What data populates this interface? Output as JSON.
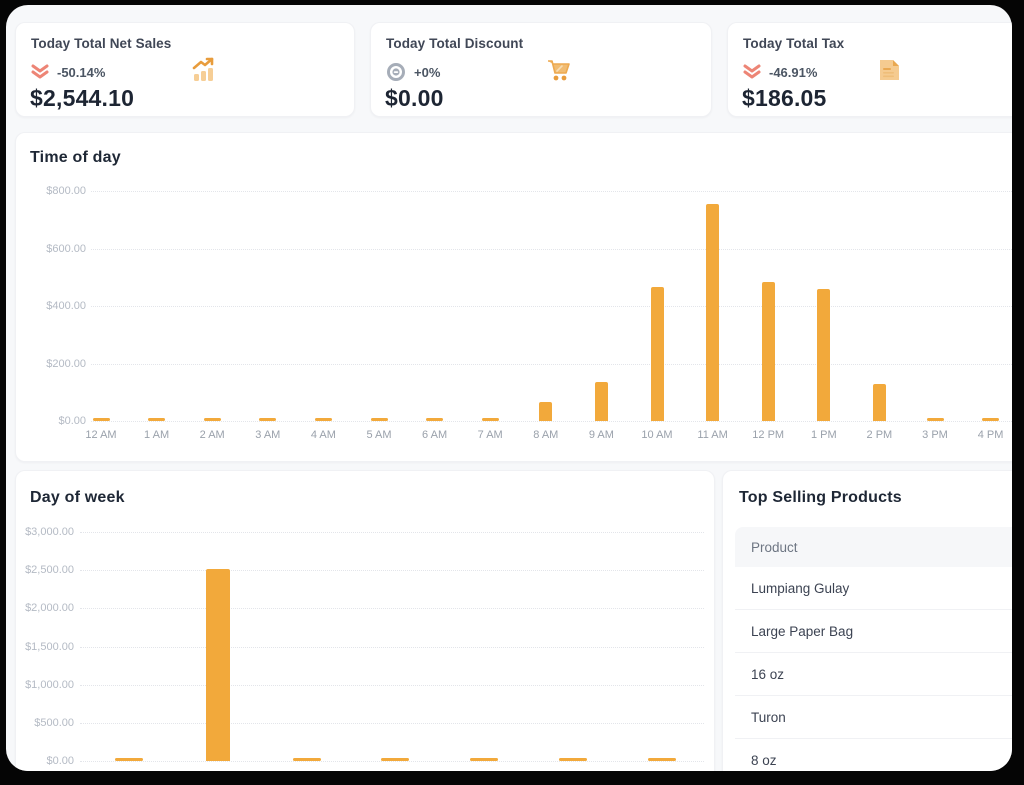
{
  "colors": {
    "accent": "#F2A93B",
    "negative": "#ED8576",
    "neutral": "#A6ADB8",
    "title": "#1e2735"
  },
  "cards": [
    {
      "label": "Today Total Net Sales",
      "change": "-50.14%",
      "trend": "down",
      "value": "$2,544.10",
      "icon": "chart-increase-icon"
    },
    {
      "label": "Today Total Discount",
      "change": "+0%",
      "trend": "neutral",
      "value": "$0.00",
      "icon": "shopping-cart-icon"
    },
    {
      "label": "Today Total Tax",
      "change": "-46.91%",
      "trend": "down",
      "value": "$186.05",
      "icon": "tax-receipt-icon"
    }
  ],
  "chart_data": [
    {
      "id": "time_of_day",
      "type": "bar",
      "title": "Time of day",
      "categories": [
        "12 AM",
        "1 AM",
        "2 AM",
        "3 AM",
        "4 AM",
        "5 AM",
        "6 AM",
        "7 AM",
        "8 AM",
        "9 AM",
        "10 AM",
        "11 AM",
        "12 PM",
        "1 PM",
        "2 PM",
        "3 PM",
        "4 PM"
      ],
      "values": [
        0,
        0,
        0,
        0,
        0,
        0,
        0,
        0,
        65,
        135,
        465,
        755,
        485,
        460,
        130,
        0,
        0
      ],
      "ylabel": "",
      "xlabel": "",
      "ylim": [
        0,
        800
      ],
      "ytick_labels": [
        "$800.00",
        "$600.00",
        "$400.00",
        "$200.00",
        "$0.00"
      ],
      "grid": "dotted horizontal",
      "bar_color": "#F2A93B"
    },
    {
      "id": "day_of_week",
      "type": "bar",
      "title": "Day of week",
      "categories": [
        "",
        "",
        "",
        "",
        "",
        "",
        ""
      ],
      "values": [
        20,
        2520,
        20,
        20,
        20,
        20,
        20
      ],
      "ylabel": "",
      "xlabel": "",
      "ylim": [
        0,
        3000
      ],
      "ytick_labels": [
        "$3,000.00",
        "$2,500.00",
        "$2,000.00",
        "$1,500.00",
        "$1,000.00",
        "$500.00",
        "$0.00"
      ],
      "grid": "dotted horizontal",
      "bar_color": "#F2A93B",
      "note": "x-axis category labels cut off at bottom of screenshot"
    }
  ],
  "top_products": {
    "title": "Top Selling Products",
    "columns": [
      "Product"
    ],
    "rows": [
      "Lumpiang Gulay",
      "Large Paper Bag",
      "16 oz",
      "Turon",
      "8 oz"
    ]
  }
}
